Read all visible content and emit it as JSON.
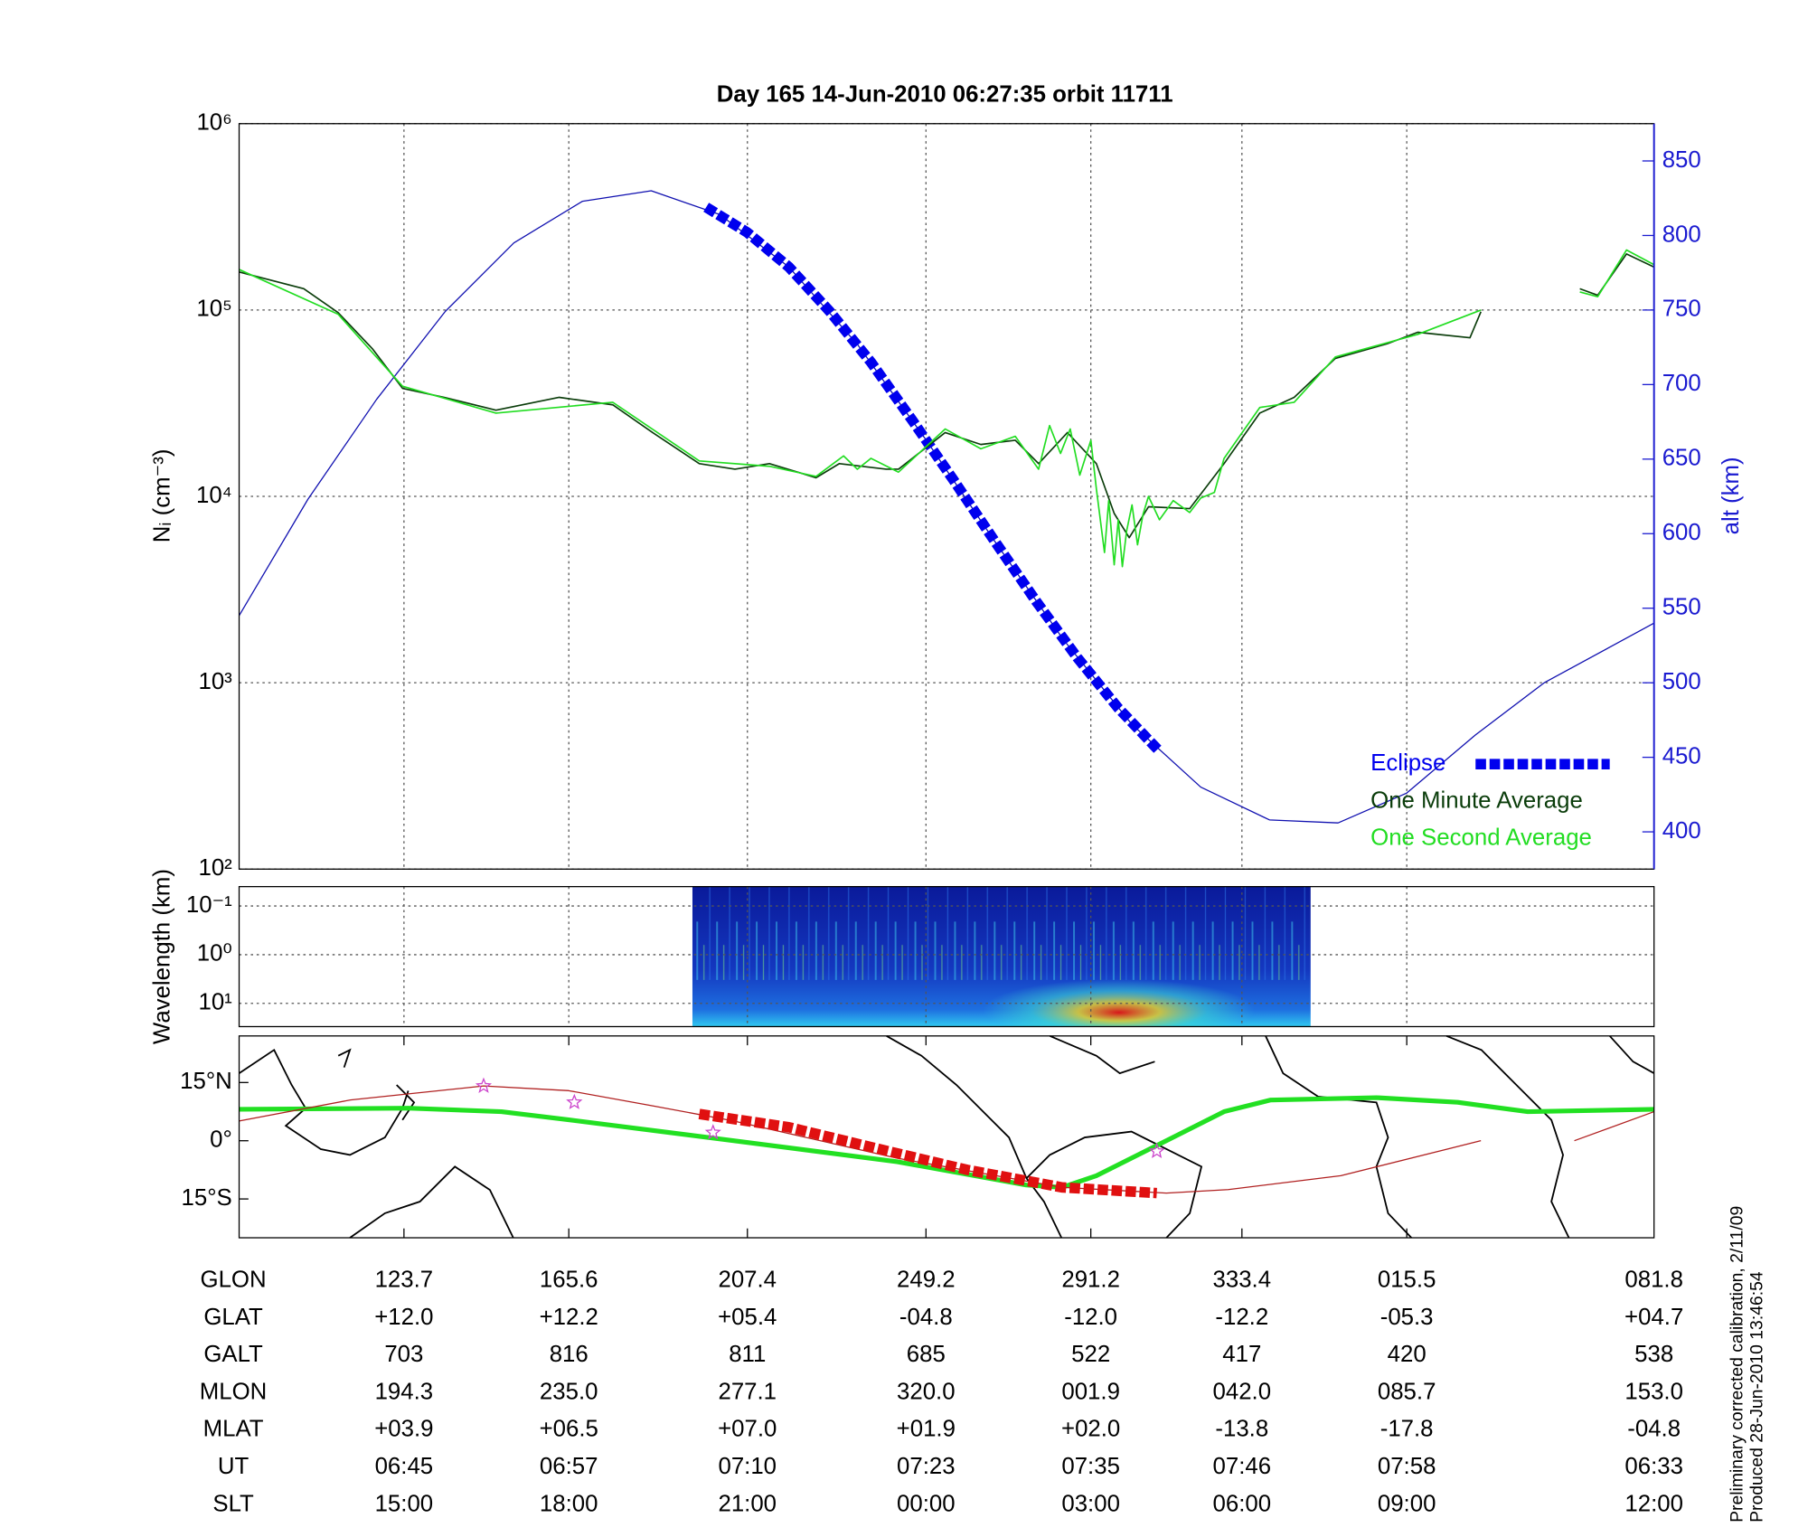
{
  "chart_data": [
    {
      "type": "line",
      "title": "Day 165  14-Jun-2010 06:27:35   orbit 11711",
      "y_label": "Nᵢ (cm⁻³)",
      "y2_label": "alt (km)",
      "log_scale": true,
      "grid": true,
      "legend": "lower right",
      "xlim": [
        393,
        496
      ],
      "xticks": [
        405,
        417,
        430,
        443,
        455,
        466,
        478
      ],
      "ylim": [
        100,
        1000000
      ],
      "yticks": [
        {
          "value": 100,
          "label": "10²"
        },
        {
          "value": 1000,
          "label": "10³"
        },
        {
          "value": 10000,
          "label": "10⁴"
        },
        {
          "value": 100000,
          "label": "10⁵"
        },
        {
          "value": 1000000,
          "label": "10⁶"
        }
      ],
      "y2lim": [
        375,
        875
      ],
      "y2ticks": [
        400,
        450,
        500,
        550,
        600,
        650,
        700,
        750,
        800,
        850
      ],
      "y2_color": "#1a1ad0",
      "series": [
        {
          "color": "#1010b0",
          "axis": "y2",
          "x": [
            393,
            398,
            403,
            408,
            413,
            418,
            423,
            428,
            433,
            438,
            443,
            448,
            453,
            458,
            463,
            468,
            473,
            478,
            483,
            488,
            493,
            496
          ],
          "values": [
            545,
            623,
            690,
            749,
            795,
            823,
            830,
            814,
            779,
            727,
            663,
            595,
            529,
            472,
            430,
            408,
            406,
            426,
            465,
            500,
            525,
            540
          ]
        },
        {
          "name": "Eclipse",
          "color": "#0000ee",
          "axis": "y2",
          "style": "dashed",
          "x": [
            427,
            430,
            433,
            436,
            439,
            442,
            445,
            448,
            451,
            454,
            457,
            460
          ],
          "values": [
            819,
            802,
            779,
            749,
            715,
            676,
            636,
            595,
            555,
            517,
            483,
            454
          ]
        },
        {
          "name": "One Minute Average",
          "color": "#0b3d0b",
          "x": [
            393,
            397.7,
            400.2,
            402.7,
            404.9,
            407.9,
            411.7,
            416.3,
            420.2,
            423.1,
            426.5,
            429.1,
            431.6,
            435,
            436.7,
            440.1,
            441,
            444.4,
            447,
            449.5,
            451.2,
            453.3,
            455.4,
            456.7,
            457.8,
            459.2,
            462.2,
            464.7,
            467.3,
            469.8,
            472.8,
            476.6,
            478.8,
            482.6,
            483.4,
            487,
            490.6,
            491.9,
            494,
            496
          ],
          "values": [
            160000,
            130000,
            97000,
            62000,
            38000,
            34000,
            29000,
            34000,
            31000,
            22000,
            15000,
            14000,
            15000,
            12600,
            15000,
            14000,
            14000,
            22000,
            19000,
            20000,
            15000,
            22000,
            15000,
            8100,
            6000,
            8800,
            8600,
            15000,
            28000,
            34000,
            55000,
            66000,
            76000,
            71000,
            98000,
            null,
            130000,
            120000,
            200000,
            170000
          ]
        },
        {
          "name": "One Second Average",
          "color": "#22dd22",
          "x": [
            393,
            400.2,
            404.9,
            411.7,
            420.2,
            426.5,
            431.6,
            435,
            437,
            438,
            439,
            441,
            444.4,
            447,
            449.5,
            451.2,
            452,
            452.8,
            453.5,
            454.2,
            455,
            455.4,
            456,
            456.3,
            456.7,
            457,
            457.3,
            457.6,
            458,
            458.4,
            458.8,
            459.2,
            460,
            461,
            462.2,
            463,
            464,
            464.7,
            467.3,
            469.8,
            472.8,
            478.8,
            483.4,
            487,
            490.6,
            491.9,
            494,
            496
          ],
          "values": [
            165000,
            95000,
            39000,
            28000,
            32000,
            15500,
            14500,
            12800,
            16500,
            14000,
            16000,
            13500,
            23000,
            18000,
            21000,
            14000,
            24000,
            17000,
            23000,
            13000,
            20000,
            11000,
            5000,
            9500,
            4300,
            7500,
            4200,
            6500,
            9000,
            5500,
            8000,
            10000,
            7500,
            9500,
            8200,
            9800,
            10500,
            16000,
            30000,
            32000,
            56000,
            74000,
            100000,
            null,
            125000,
            118000,
            210000,
            175000
          ]
        }
      ]
    },
    {
      "type": "spectrogram",
      "y_label": "Wavelength (km)",
      "log_scale": true,
      "inverted": true,
      "ylim": [
        0.04,
        30
      ],
      "yticks": [
        {
          "value": 0.1,
          "label": "10⁻¹"
        },
        {
          "value": 1,
          "label": "10⁰"
        },
        {
          "value": 10,
          "label": "10¹"
        }
      ],
      "x": [
        426,
        471
      ]
    },
    {
      "type": "map",
      "ylim": [
        -25,
        27
      ],
      "yticks": [
        {
          "value": 15,
          "label": "15°N"
        },
        {
          "value": 0,
          "label": "0°"
        },
        {
          "value": -15,
          "label": "15°S"
        }
      ],
      "series": [
        {
          "color": "#22e022",
          "x": [
            393,
            405.3,
            412.1,
            417,
            429,
            440.9,
            450.3,
            452.9,
            455.4,
            460.5,
            464.7,
            468.1,
            475.8,
            481.7,
            486.8,
            496
          ],
          "values": [
            8.1,
            8.4,
            7.5,
            5.4,
            0,
            -5.4,
            -11.4,
            -12,
            -9,
            0,
            7.5,
            10.5,
            11.1,
            9.9,
            7.5,
            8.1
          ]
        },
        {
          "color": "#b02020",
          "x": [
            393,
            401.1,
            410.8,
            417,
            423.1,
            429,
            440.9,
            452.9,
            460.5,
            465,
            473.2,
            483.4,
            487,
            490.2,
            496
          ],
          "values": [
            5.1,
            10.5,
            14.1,
            12.9,
            9,
            5.1,
            -4.5,
            -12,
            -13.5,
            -12.6,
            -9,
            0,
            null,
            0,
            7.5
          ]
        },
        {
          "color": "#e01010",
          "style": "dashed",
          "x": [
            426.5,
            433,
            440,
            446,
            452.9,
            459.8
          ],
          "values": [
            6.9,
            3.5,
            -2.5,
            -7.5,
            -12,
            -13.5
          ]
        }
      ],
      "points": {
        "color": "#cc44cc",
        "x": [
          410.8,
          417.4,
          427.5,
          459.8
        ],
        "values": [
          14.1,
          9.9,
          2.1,
          -2.7
        ]
      }
    }
  ],
  "table": {
    "rows": [
      {
        "label": "GLON",
        "values": [
          "123.7",
          "165.6",
          "207.4",
          "249.2",
          "291.2",
          "333.4",
          "015.5",
          "081.8"
        ]
      },
      {
        "label": "GLAT",
        "values": [
          "+12.0",
          "+12.2",
          "+05.4",
          "-04.8",
          "-12.0",
          "-12.2",
          "-05.3",
          "+04.7"
        ]
      },
      {
        "label": "GALT",
        "values": [
          "703",
          "816",
          "811",
          "685",
          "522",
          "417",
          "420",
          "538"
        ]
      },
      {
        "label": "MLON",
        "values": [
          "194.3",
          "235.0",
          "277.1",
          "320.0",
          "001.9",
          "042.0",
          "085.7",
          "153.0"
        ]
      },
      {
        "label": "MLAT",
        "values": [
          "+03.9",
          "+06.5",
          "+07.0",
          "+01.9",
          "+02.0",
          "-13.8",
          "-17.8",
          "-04.8"
        ]
      },
      {
        "label": "UT",
        "values": [
          "06:45",
          "06:57",
          "07:10",
          "07:23",
          "07:35",
          "07:46",
          "07:58",
          "06:33"
        ]
      },
      {
        "label": "SLT",
        "values": [
          "15:00",
          "18:00",
          "21:00",
          "00:00",
          "03:00",
          "06:00",
          "09:00",
          "12:00"
        ]
      }
    ]
  },
  "notes": [
    "Preliminary corrected calibration, 2/11/09",
    "Produced 28-Jun-2010 13:46:54"
  ]
}
